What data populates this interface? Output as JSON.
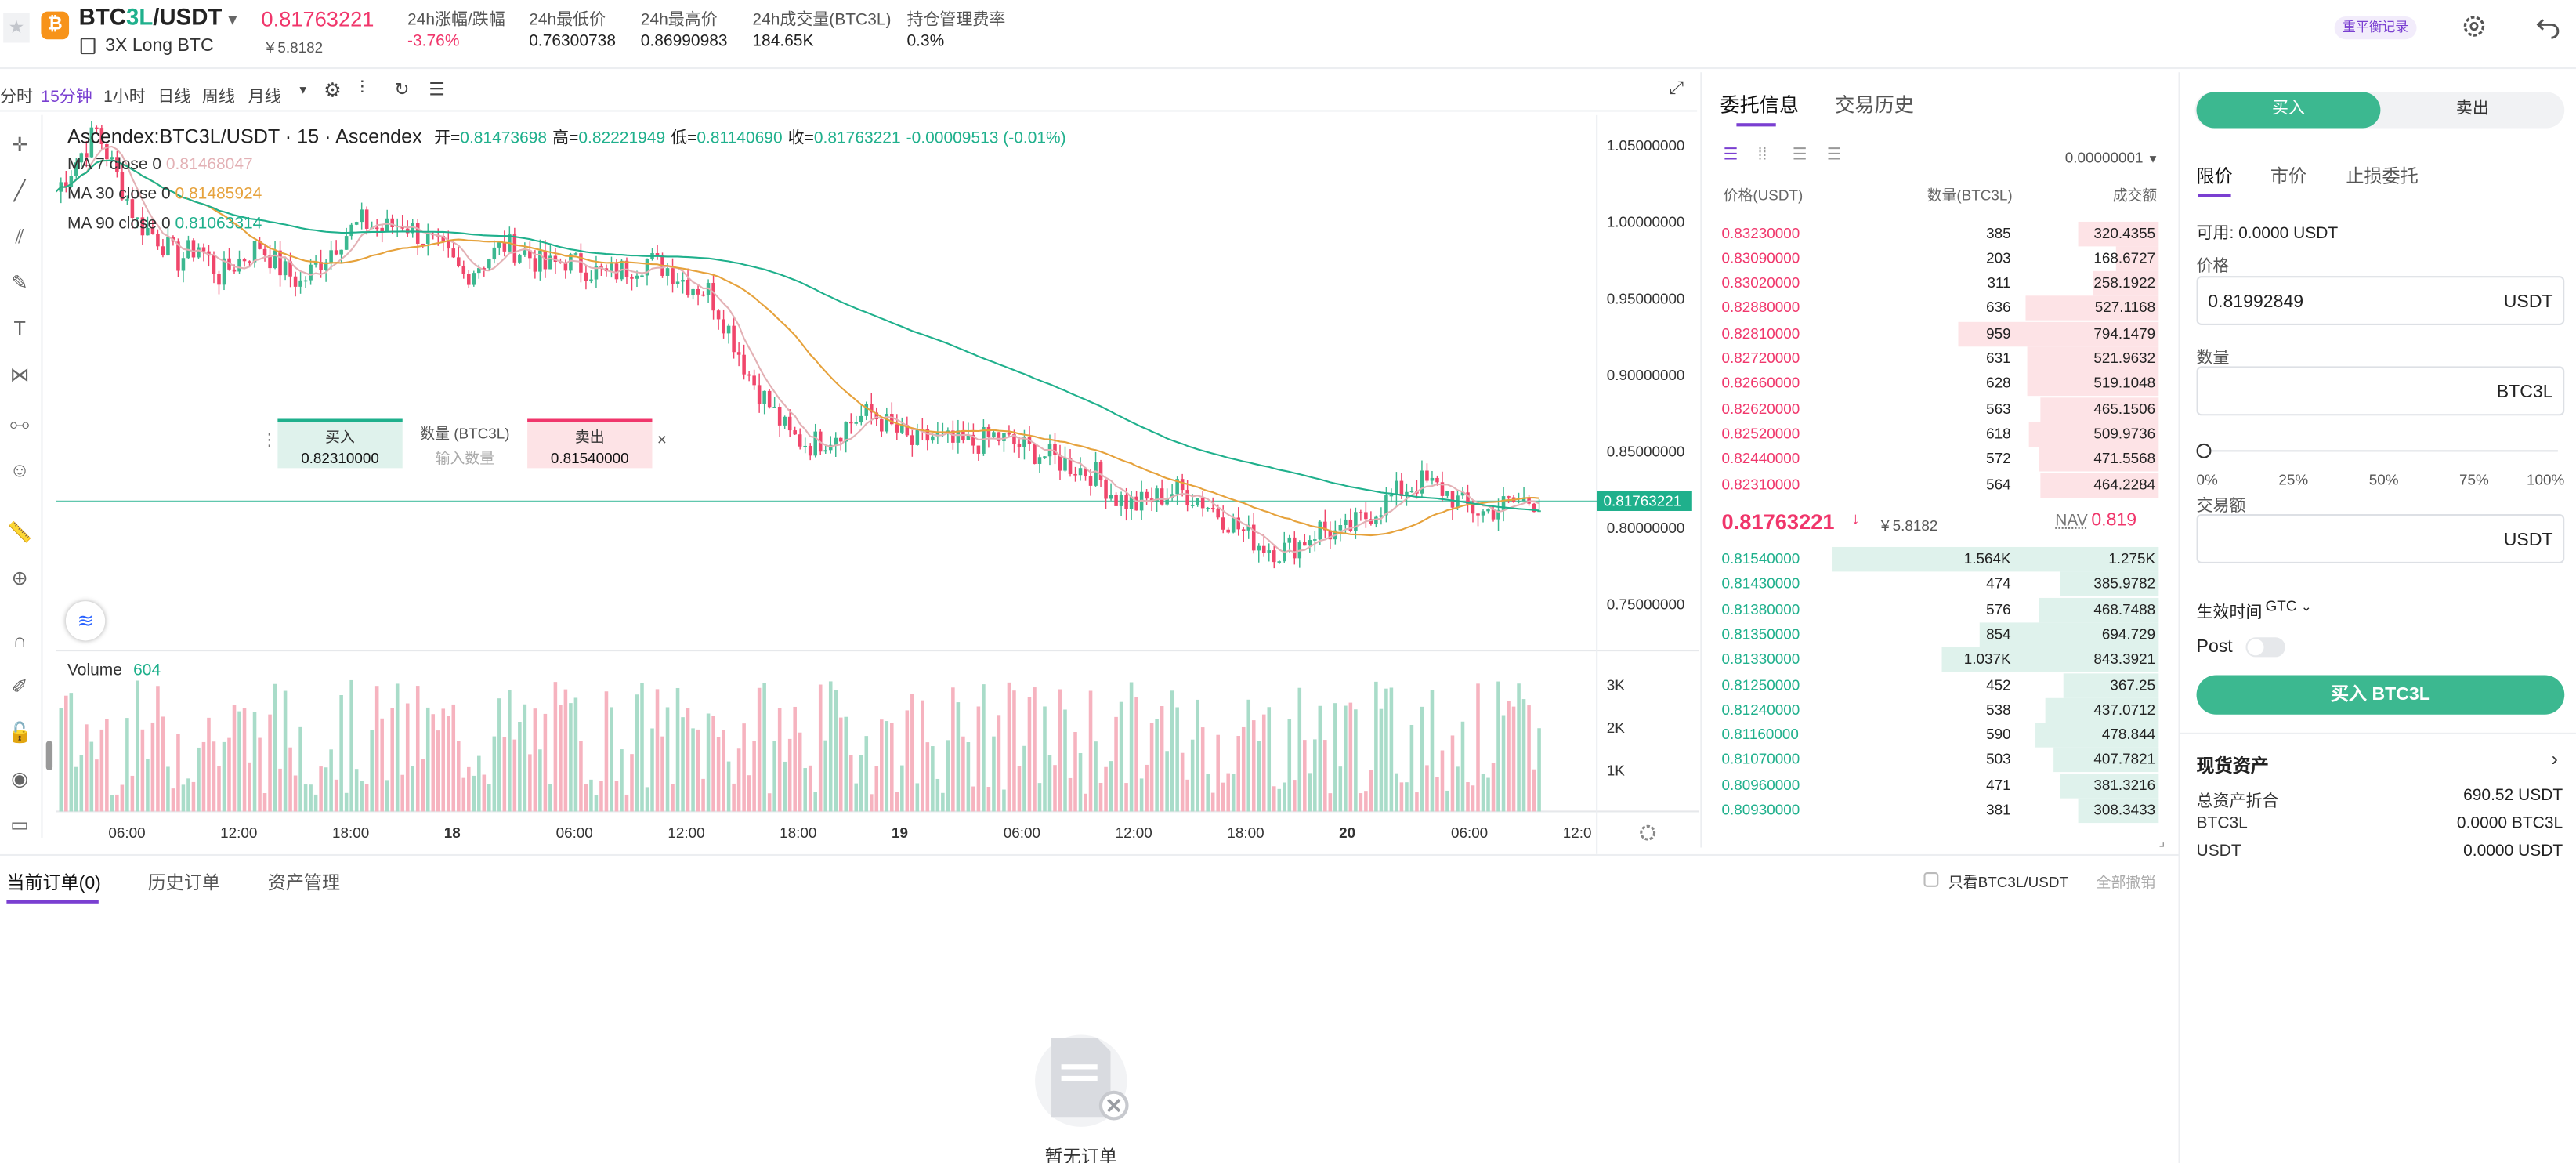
{
  "header": {
    "pair_base": "BTC",
    "pair_lev": "3L",
    "pair_quote": "/USDT",
    "subtitle": "3X Long BTC",
    "price": "0.81763221",
    "price_cny": "￥5.8182",
    "stats": [
      {
        "label": "24h涨幅/跌幅",
        "value": "-3.76%"
      },
      {
        "label": "24h最低价",
        "value": "0.76300738"
      },
      {
        "label": "24h最高价",
        "value": "0.86990983"
      },
      {
        "label": "24h成交量(BTC3L)",
        "value": "184.65K"
      },
      {
        "label": "持仓管理费率",
        "value": "0.3%"
      }
    ],
    "rebalance": "重平衡记录"
  },
  "toolbar": {
    "intervals": [
      "分时",
      "15分钟",
      "1小时",
      "日线",
      "周线",
      "月线"
    ]
  },
  "chart_data": {
    "type": "candlestick",
    "title": "Ascendex:BTC3L/USDT · 15 · Ascendex",
    "ohlc_labels": {
      "o_l": "开=",
      "o": "0.81473698",
      "h_l": "高=",
      "h": "0.82221949",
      "l_l": "低=",
      "l": "0.81140690",
      "c_l": "收=",
      "c": "0.81763221",
      "chg": "-0.00009513 (-0.01%)"
    },
    "ma": [
      {
        "label": "MA 7 close 0",
        "value": "0.81468047",
        "color": "#e3b1b5"
      },
      {
        "label": "MA 30 close 0",
        "value": "0.81485924",
        "color": "#e6a23c"
      },
      {
        "label": "MA 90 close 0",
        "value": "0.81063314",
        "color": "#1fb08c"
      }
    ],
    "y_ticks": [
      "1.05000000",
      "1.00000000",
      "0.95000000",
      "0.90000000",
      "0.85000000",
      "0.80000000",
      "0.75000000"
    ],
    "ylim": [
      0.72,
      1.07
    ],
    "current_price": "0.81763221",
    "x_ticks": [
      "06:00",
      "12:00",
      "18:00",
      "18",
      "06:00",
      "12:00",
      "18:00",
      "19",
      "06:00",
      "12:00",
      "18:00",
      "20",
      "06:00",
      "12:0"
    ],
    "volume_label": "Volume",
    "volume_value": "604",
    "volume_ticks": [
      "3K",
      "2K",
      "1K"
    ],
    "close_points": [
      1.02,
      1.04,
      1.06,
      1.03,
      1.0,
      0.99,
      0.975,
      0.985,
      0.965,
      0.975,
      0.985,
      0.97,
      0.96,
      0.975,
      0.99,
      1.0,
      0.995,
      1.0,
      0.99,
      0.98,
      0.965,
      0.975,
      0.985,
      0.98,
      0.97,
      0.975,
      0.97,
      0.965,
      0.97,
      0.975,
      0.97,
      0.96,
      0.955,
      0.93,
      0.9,
      0.88,
      0.86,
      0.855,
      0.86,
      0.87,
      0.875,
      0.865,
      0.855,
      0.86,
      0.855,
      0.855,
      0.86,
      0.855,
      0.85,
      0.845,
      0.84,
      0.835,
      0.82,
      0.815,
      0.82,
      0.825,
      0.82,
      0.81,
      0.8,
      0.79,
      0.785,
      0.79,
      0.8,
      0.795,
      0.805,
      0.815,
      0.825,
      0.83,
      0.825,
      0.815,
      0.81,
      0.815,
      0.818
    ]
  },
  "quick_trade": {
    "buy_label": "买入",
    "buy_price": "0.82310000",
    "qty_label": "数量 (BTC3L)",
    "qty_placeholder": "输入数量",
    "sell_label": "卖出",
    "sell_price": "0.81540000"
  },
  "orderbook": {
    "tabs": [
      "委托信息",
      "交易历史"
    ],
    "precision": "0.00000001",
    "headers": [
      "价格(USDT)",
      "数量(BTC3L)",
      "成交额"
    ],
    "asks": [
      [
        "0.83230000",
        "385",
        "320.4355"
      ],
      [
        "0.83090000",
        "203",
        "168.6727"
      ],
      [
        "0.83020000",
        "311",
        "258.1922"
      ],
      [
        "0.82880000",
        "636",
        "527.1168"
      ],
      [
        "0.82810000",
        "959",
        "794.1479"
      ],
      [
        "0.82720000",
        "631",
        "521.9632"
      ],
      [
        "0.82660000",
        "628",
        "519.1048"
      ],
      [
        "0.82620000",
        "563",
        "465.1506"
      ],
      [
        "0.82520000",
        "618",
        "509.9736"
      ],
      [
        "0.82440000",
        "572",
        "471.5568"
      ],
      [
        "0.82310000",
        "564",
        "464.2284"
      ]
    ],
    "mid_price": "0.81763221",
    "mid_cny": "￥5.8182",
    "nav_label": "NAV",
    "nav": "0.819",
    "bids": [
      [
        "0.81540000",
        "1.564K",
        "1.275K"
      ],
      [
        "0.81430000",
        "474",
        "385.9782"
      ],
      [
        "0.81380000",
        "576",
        "468.7488"
      ],
      [
        "0.81350000",
        "854",
        "694.729"
      ],
      [
        "0.81330000",
        "1.037K",
        "843.3921"
      ],
      [
        "0.81250000",
        "452",
        "367.25"
      ],
      [
        "0.81240000",
        "538",
        "437.0712"
      ],
      [
        "0.81160000",
        "590",
        "478.844"
      ],
      [
        "0.81070000",
        "503",
        "407.7821"
      ],
      [
        "0.80960000",
        "471",
        "381.3216"
      ],
      [
        "0.80930000",
        "381",
        "308.3433"
      ]
    ]
  },
  "trade": {
    "buy": "买入",
    "sell": "卖出",
    "types": [
      "限价",
      "市价",
      "止损委托"
    ],
    "available": "可用: 0.0000 USDT",
    "price_label": "价格",
    "price_value": "0.81992849",
    "price_unit": "USDT",
    "qty_label": "数量",
    "qty_unit": "BTC3L",
    "pcts": [
      "0%",
      "25%",
      "50%",
      "75%",
      "100%"
    ],
    "amount_label": "交易额",
    "amount_unit": "USDT",
    "tif_label": "生效时间",
    "tif_value": "GTC",
    "post_label": "Post",
    "submit": "买入 BTC3L"
  },
  "assets": {
    "title": "现货资产",
    "rows": [
      [
        "总资产折合",
        "690.52 USDT"
      ],
      [
        "BTC3L",
        "0.0000 BTC3L"
      ],
      [
        "USDT",
        "0.0000 USDT"
      ]
    ]
  },
  "orders": {
    "tabs": [
      "当前订单(0)",
      "历史订单",
      "资产管理"
    ],
    "only_label": "只看BTC3L/USDT",
    "cancel_all": "全部撤销",
    "empty": "暂无订单"
  }
}
